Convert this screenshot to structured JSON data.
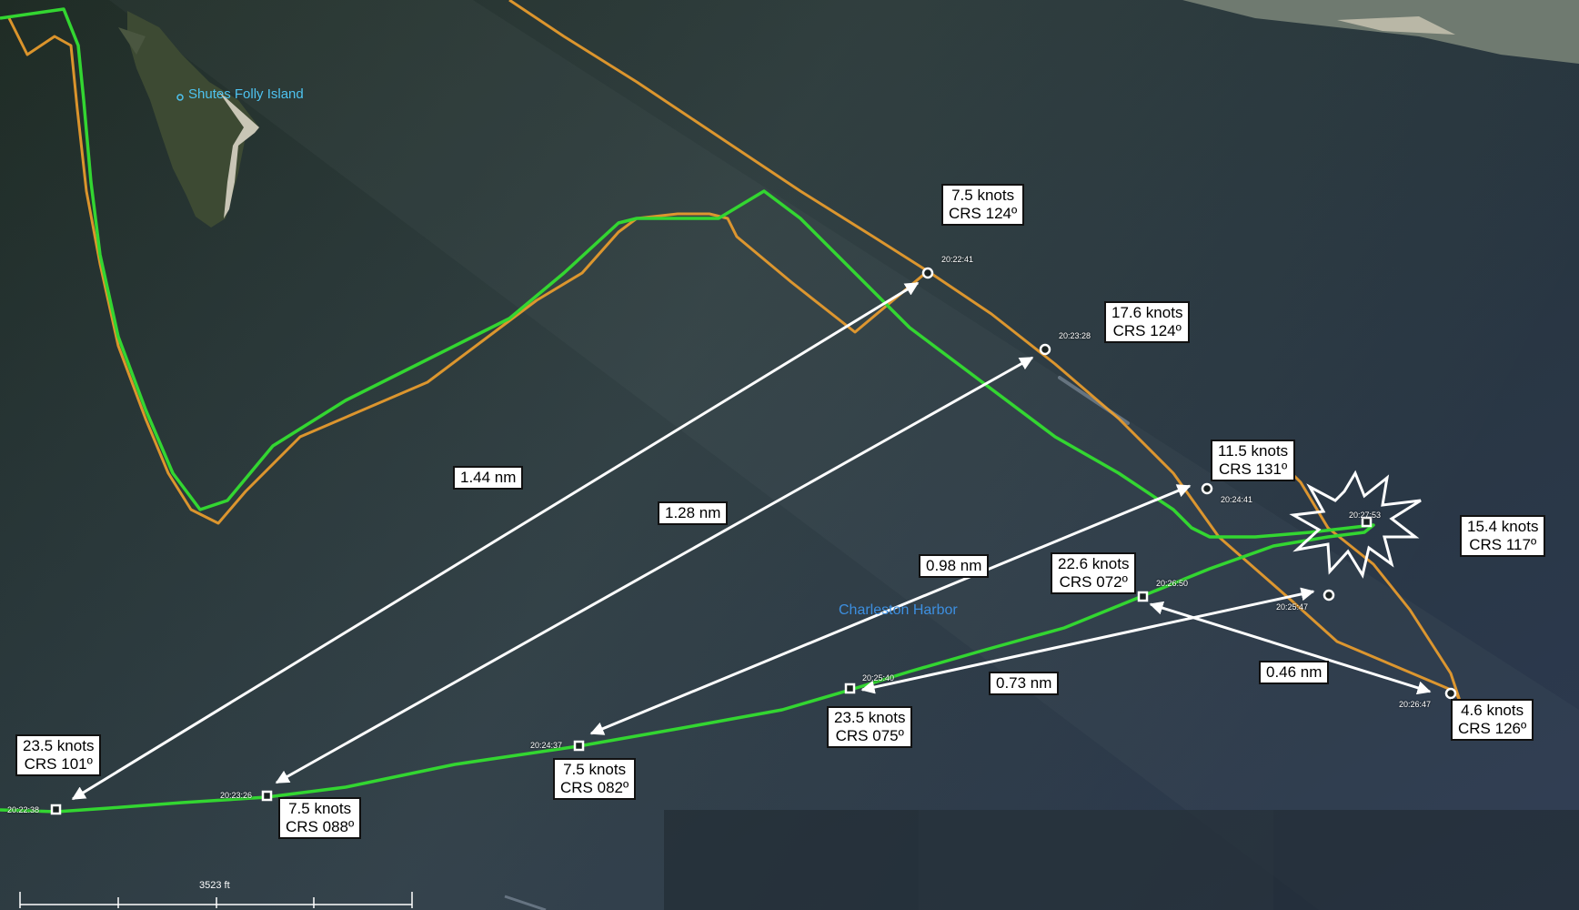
{
  "colors": {
    "vessel_a_track": "#f0a02c",
    "vessel_b_track": "#33d631",
    "label_bg": "#ffffff",
    "place_label": "#4ec3f0",
    "water_label": "#3d8fe0"
  },
  "places": {
    "island": "Shutes Folly Island",
    "harbor": "Charleston Harbor"
  },
  "scale_bar": {
    "label": "3523 ft"
  },
  "orange_points": [
    {
      "time": "20:22:41",
      "speed": "7.5 knots",
      "course": "CRS 124º"
    },
    {
      "time": "20:23:28",
      "speed": "17.6 knots",
      "course": "CRS 124º"
    },
    {
      "time": "20:24:41",
      "speed": "11.5 knots",
      "course": "CRS 131º"
    },
    {
      "time": "20:25:47",
      "speed": "15.4 knots",
      "course": "CRS 117º"
    },
    {
      "time": "20:26:47",
      "speed": "4.6 knots",
      "course": "CRS 126º"
    }
  ],
  "green_points": [
    {
      "time": "20:22:38",
      "speed": "23.5 knots",
      "course": "CRS 101º"
    },
    {
      "time": "20:23:26",
      "speed": "7.5 knots",
      "course": "CRS 088º"
    },
    {
      "time": "20:24:37",
      "speed": "7.5 knots",
      "course": "CRS 082º"
    },
    {
      "time": "20:25:40",
      "speed": "23.5 knots",
      "course": "CRS 075º"
    },
    {
      "time": "20:26:50",
      "speed": "22.6 knots",
      "course": "CRS 072º"
    }
  ],
  "collision": {
    "time": "20:27:53"
  },
  "distances": [
    "1.44 nm",
    "1.28 nm",
    "0.98 nm",
    "0.73 nm",
    "0.46 nm"
  ]
}
